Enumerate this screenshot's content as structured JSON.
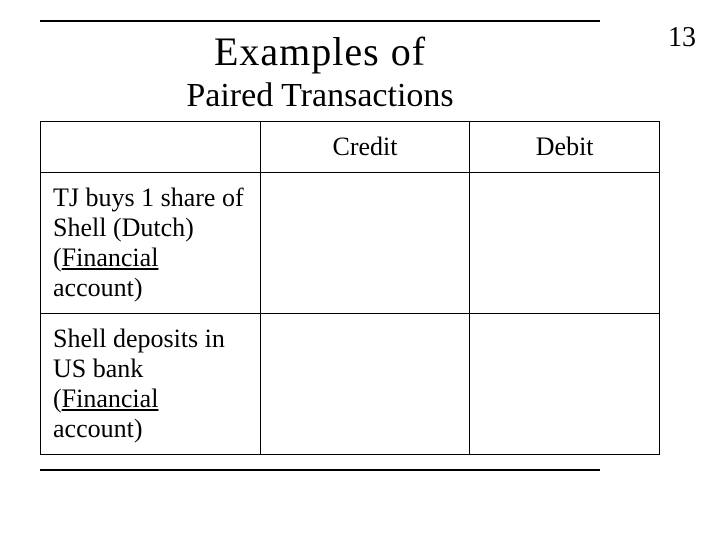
{
  "page_number": "13",
  "title": {
    "main": "Examples of",
    "sub": "Paired Transactions"
  },
  "table": {
    "headers": {
      "col1": "",
      "col2": "Credit",
      "col3": "Debit"
    },
    "rows": [
      {
        "desc_pre": "TJ buys 1 share of Shell (Dutch) (",
        "desc_underline": "Financial",
        "desc_post": " account)",
        "credit": "",
        "debit": ""
      },
      {
        "desc_pre": "Shell deposits in US bank  (",
        "desc_underline": "Financial",
        "desc_post": " account)",
        "credit": "",
        "debit": ""
      }
    ]
  },
  "styling": {
    "background_color": "#ffffff",
    "rule_color": "#000000",
    "text_color": "#000000",
    "title_main_fontsize": 40,
    "title_sub_fontsize": 34,
    "page_number_fontsize": 28,
    "table_fontsize": 26,
    "font_family": "Times New Roman"
  }
}
